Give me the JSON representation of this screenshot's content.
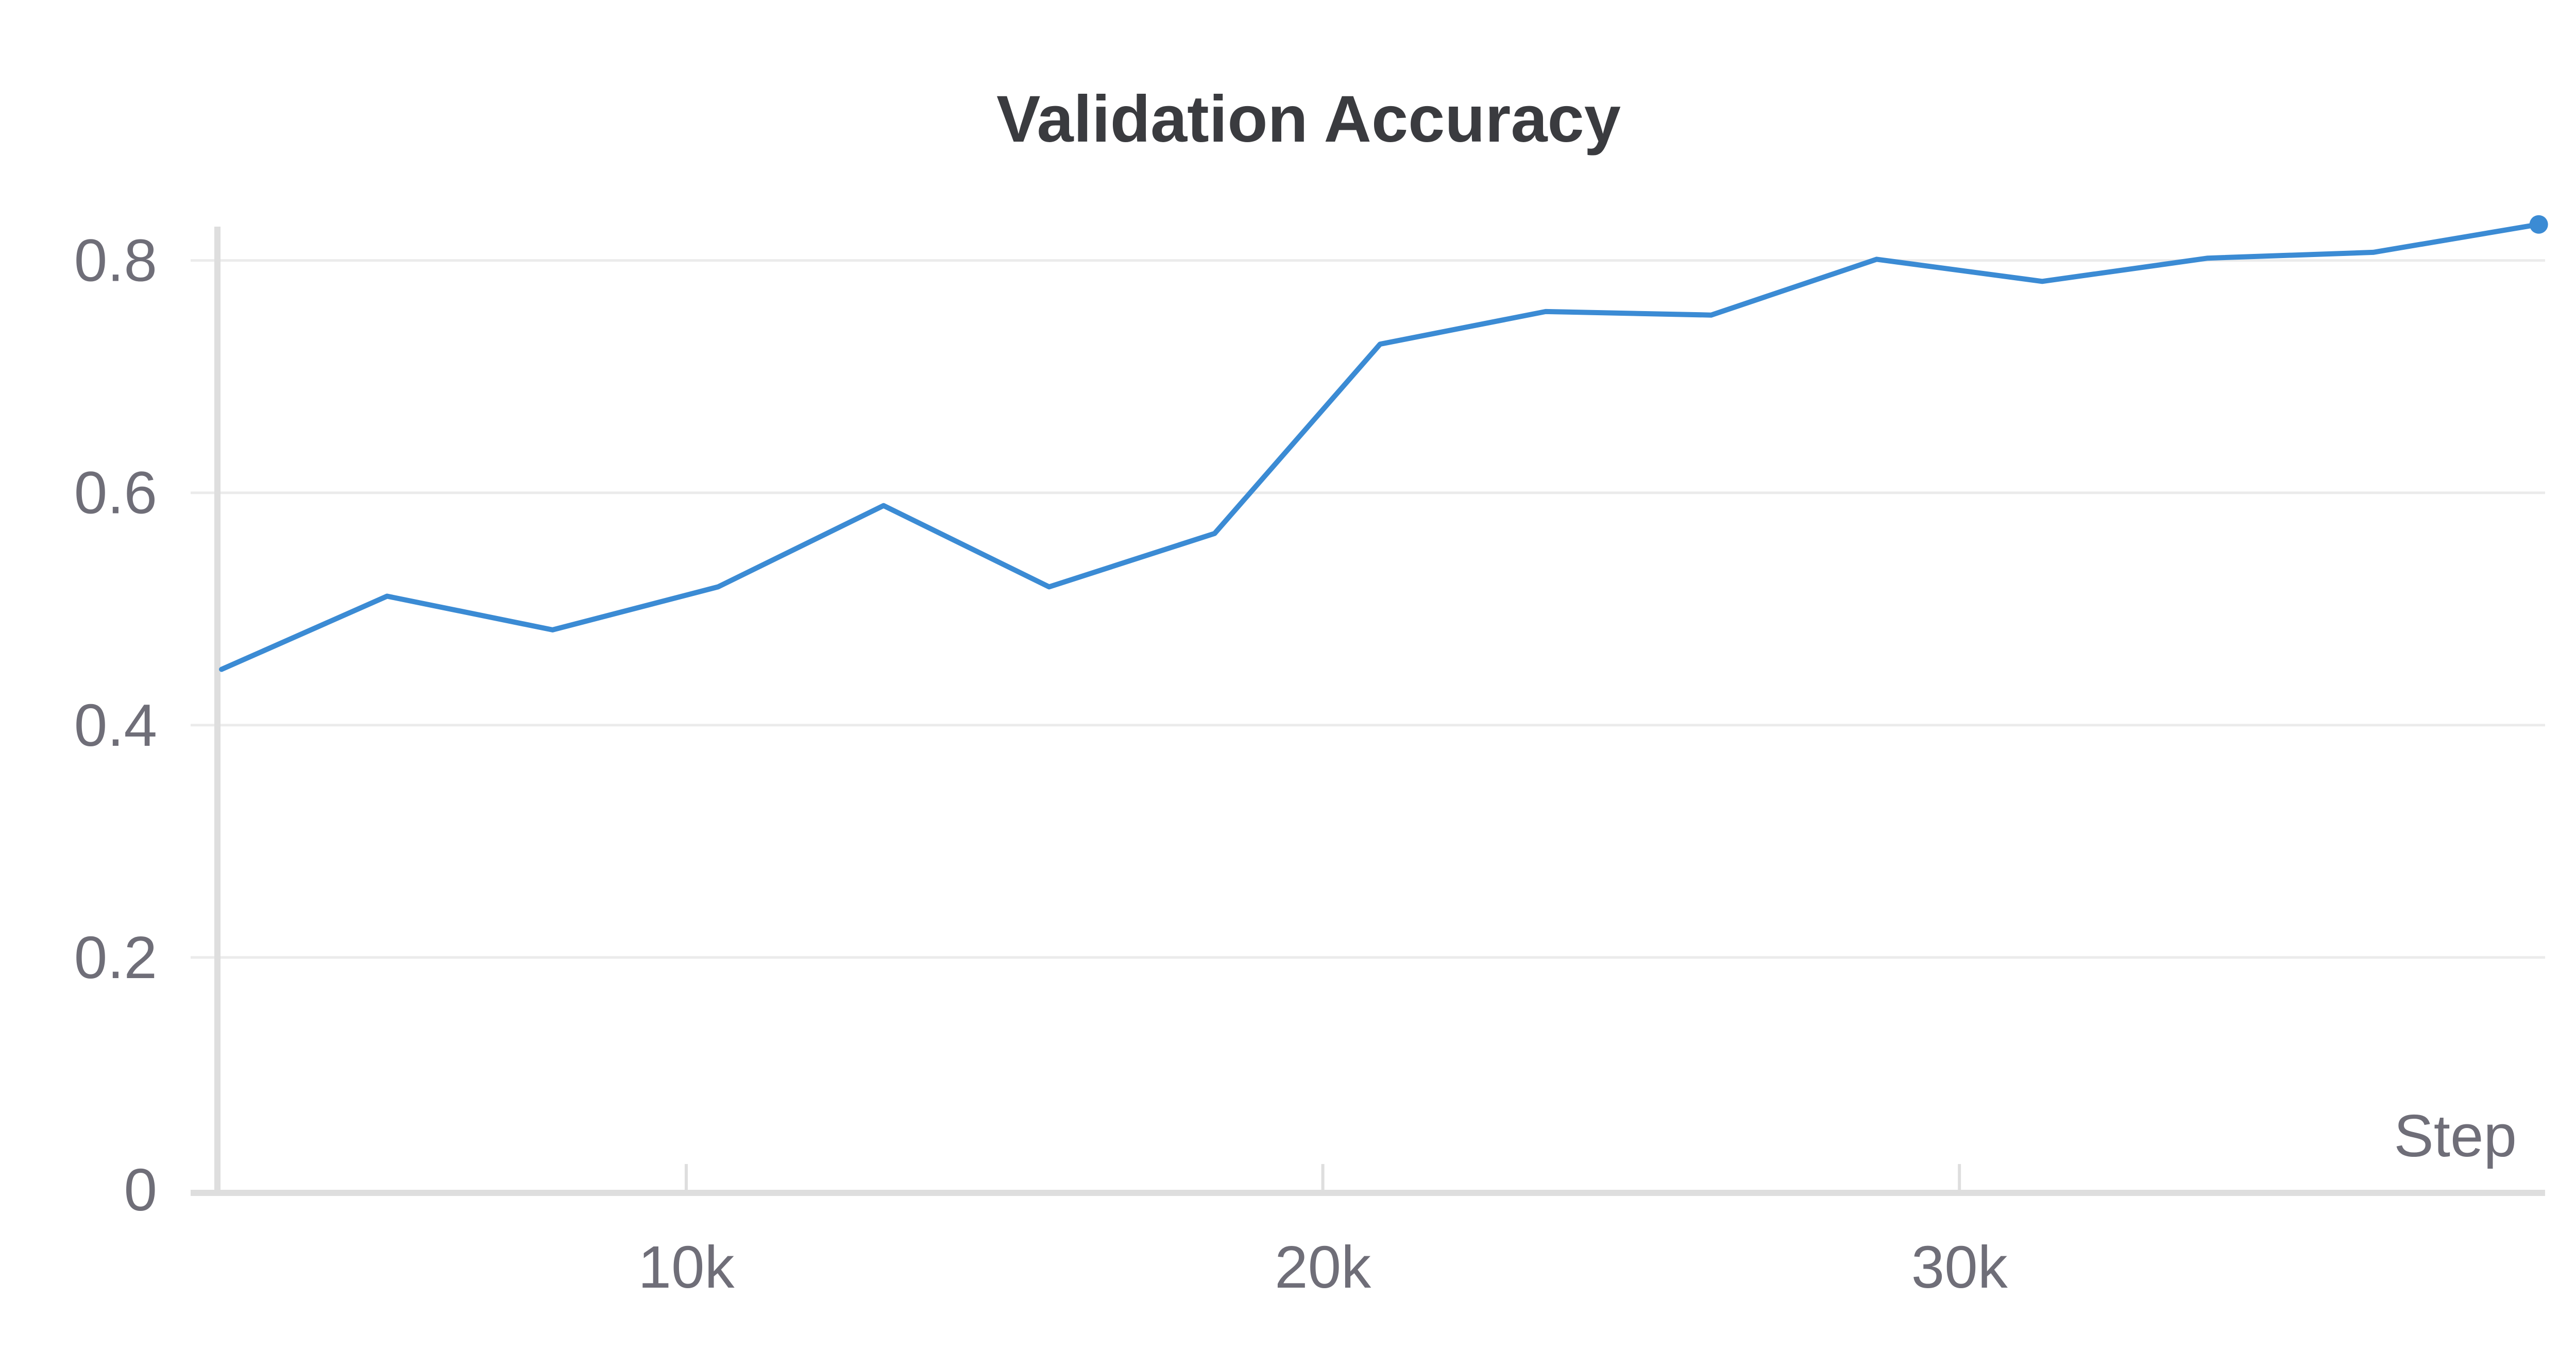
{
  "chart_data": {
    "type": "line",
    "title": "Validation Accuracy",
    "xlabel": "Step",
    "ylabel": "",
    "xlim": [
      2700,
      39200
    ],
    "ylim": [
      0,
      0.83
    ],
    "x_ticks": [
      {
        "value": 10000,
        "label": "10k"
      },
      {
        "value": 20000,
        "label": "20k"
      },
      {
        "value": 30000,
        "label": "30k"
      }
    ],
    "y_ticks": [
      {
        "value": 0,
        "label": "0"
      },
      {
        "value": 0.2,
        "label": "0.2"
      },
      {
        "value": 0.4,
        "label": "0.4"
      },
      {
        "value": 0.6,
        "label": "0.6"
      },
      {
        "value": 0.8,
        "label": "0.8"
      }
    ],
    "grid": true,
    "legend": "none",
    "series": [
      {
        "color": "#3b8bd4",
        "x": [
          2700,
          5300,
          7900,
          10500,
          13100,
          15700,
          18300,
          20900,
          23500,
          26100,
          28700,
          31300,
          33900,
          36500,
          39100
        ],
        "y": [
          0.448,
          0.511,
          0.482,
          0.519,
          0.589,
          0.519,
          0.565,
          0.728,
          0.756,
          0.753,
          0.801,
          0.782,
          0.802,
          0.807,
          0.831
        ]
      }
    ]
  }
}
